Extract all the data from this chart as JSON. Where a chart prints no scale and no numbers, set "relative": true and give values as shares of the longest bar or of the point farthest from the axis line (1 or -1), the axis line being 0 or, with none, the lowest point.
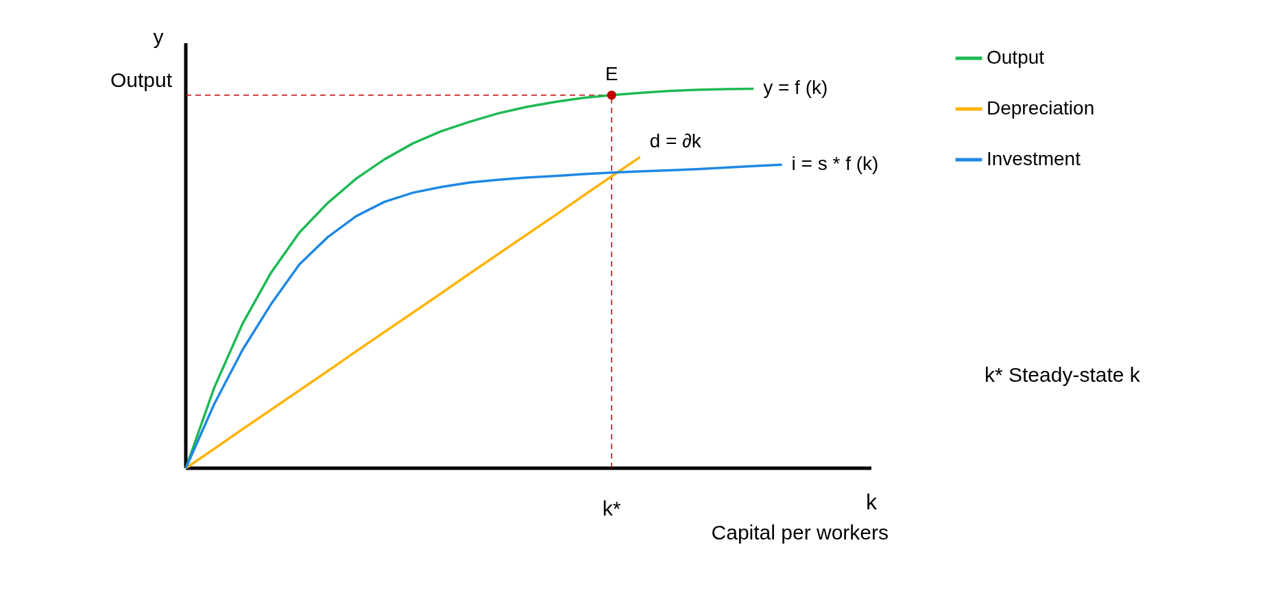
{
  "chart_data": {
    "type": "line",
    "relative": true,
    "xlabel": "k",
    "ylabel": "y",
    "legend": "right",
    "grid": false,
    "line_style": "solid",
    "marker": "none",
    "categories": [
      null,
      null,
      null,
      null,
      null,
      null,
      null,
      null,
      null,
      null,
      null,
      null,
      null,
      null,
      null,
      null,
      null,
      null,
      null,
      null,
      null,
      null
    ],
    "series": [
      {
        "name": "Output",
        "color": "#1db954",
        "values": [
          0,
          0.212,
          0.381,
          0.515,
          0.621,
          0.699,
          0.763,
          0.814,
          0.856,
          0.888,
          0.913,
          0.935,
          0.952,
          0.965,
          0.976,
          0.983,
          0.989,
          0.994,
          0.997,
          0.999,
          1.0,
          null
        ]
      },
      {
        "name": "Depreciation",
        "color": "#ffb300",
        "values": [
          0,
          0.051,
          0.103,
          0.154,
          0.205,
          0.256,
          0.308,
          0.359,
          0.41,
          0.461,
          0.513,
          0.564,
          0.615,
          0.666,
          0.718,
          0.769,
          0.82,
          null,
          null,
          null,
          null,
          null
        ]
      },
      {
        "name": "Investment",
        "color": "#1e88e5",
        "values": [
          0,
          0.169,
          0.312,
          0.432,
          0.537,
          0.609,
          0.664,
          0.702,
          0.726,
          0.741,
          0.753,
          0.76,
          0.766,
          0.77,
          0.775,
          0.779,
          0.782,
          0.785,
          0.788,
          0.792,
          0.796,
          0.8
        ]
      }
    ],
    "ref_lines": [
      {
        "axis": "y",
        "value": 0.983,
        "color": "#c00000",
        "line_style": "dashed"
      }
    ],
    "annotations": [
      "y = f (k)",
      "d = ∂k",
      "i = s * f (k)",
      {
        "text": "E",
        "y": 0.983
      },
      "k*",
      "Output",
      "Capital per workers",
      "k*   Steady-state k"
    ]
  }
}
